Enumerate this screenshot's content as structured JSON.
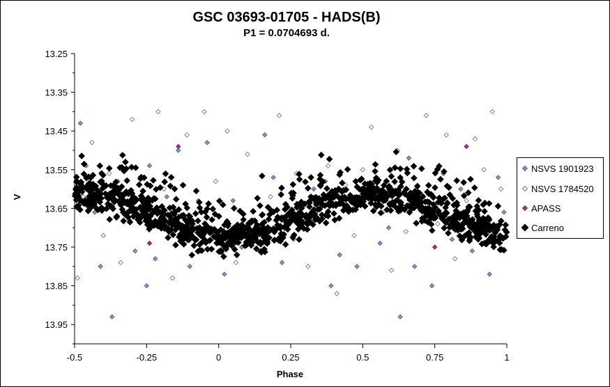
{
  "chart_data": {
    "type": "scatter",
    "title": "GSC 03693-01705  - HADS(B)",
    "subtitle": "P1 = 0.0704693 d.",
    "xlabel": "Phase",
    "ylabel": "V",
    "xlim": [
      -0.5,
      1.0
    ],
    "ylim": [
      13.25,
      14.0
    ],
    "y_inverted": true,
    "x_ticks": [
      "-0.5",
      "-0.25",
      "0",
      "0.25",
      "0.5",
      "0.75",
      "1"
    ],
    "x_tick_values": [
      -0.5,
      -0.25,
      0,
      0.25,
      0.5,
      0.75,
      1.0
    ],
    "y_ticks": [
      "13.25",
      "13.35",
      "13.45",
      "13.55",
      "13.65",
      "13.75",
      "13.85",
      "13.95"
    ],
    "y_tick_values": [
      13.25,
      13.35,
      13.45,
      13.55,
      13.65,
      13.75,
      13.85,
      13.95
    ],
    "grid": false,
    "legend_position": "right",
    "colors": {
      "nsvs1": "#8095c8",
      "nsvs2": "#ffffff",
      "apass": "#a0308a",
      "carreno": "#000000"
    },
    "series": [
      {
        "name": "NSVS 1901923",
        "marker": "small-diamond-filled",
        "points": [
          [
            -0.48,
            13.43
          ],
          [
            -0.46,
            13.54
          ],
          [
            -0.43,
            13.66
          ],
          [
            -0.41,
            13.8
          ],
          [
            -0.37,
            13.93
          ],
          [
            -0.35,
            13.58
          ],
          [
            -0.31,
            13.68
          ],
          [
            -0.29,
            13.76
          ],
          [
            -0.25,
            13.85
          ],
          [
            -0.24,
            13.54
          ],
          [
            -0.22,
            13.78
          ],
          [
            -0.2,
            13.69
          ],
          [
            -0.18,
            13.62
          ],
          [
            -0.14,
            13.5
          ],
          [
            -0.12,
            13.73
          ],
          [
            -0.1,
            13.8
          ],
          [
            -0.07,
            13.63
          ],
          [
            -0.04,
            13.48
          ],
          [
            -0.02,
            13.72
          ],
          [
            0.02,
            13.82
          ],
          [
            0.05,
            13.63
          ],
          [
            0.08,
            13.75
          ],
          [
            0.12,
            13.68
          ],
          [
            0.16,
            13.46
          ],
          [
            0.19,
            13.57
          ],
          [
            0.22,
            13.79
          ],
          [
            0.26,
            13.73
          ],
          [
            0.3,
            13.68
          ],
          [
            0.33,
            13.6
          ],
          [
            0.37,
            13.58
          ],
          [
            0.39,
            13.85
          ],
          [
            0.42,
            13.77
          ],
          [
            0.45,
            13.66
          ],
          [
            0.48,
            13.8
          ],
          [
            0.52,
            13.62
          ],
          [
            0.56,
            13.74
          ],
          [
            0.59,
            13.7
          ],
          [
            0.63,
            13.93
          ],
          [
            0.66,
            13.52
          ],
          [
            0.68,
            13.8
          ],
          [
            0.71,
            13.66
          ],
          [
            0.74,
            13.85
          ],
          [
            0.78,
            13.56
          ],
          [
            0.81,
            13.73
          ],
          [
            0.84,
            13.6
          ],
          [
            0.88,
            13.76
          ],
          [
            0.91,
            13.68
          ],
          [
            0.94,
            13.82
          ],
          [
            0.97,
            13.57
          ],
          [
            0.99,
            13.66
          ]
        ]
      },
      {
        "name": "NSVS 1784520",
        "marker": "small-diamond-open",
        "points": [
          [
            -0.49,
            13.83
          ],
          [
            -0.47,
            13.62
          ],
          [
            -0.44,
            13.48
          ],
          [
            -0.4,
            13.72
          ],
          [
            -0.38,
            13.56
          ],
          [
            -0.34,
            13.79
          ],
          [
            -0.3,
            13.42
          ],
          [
            -0.27,
            13.66
          ],
          [
            -0.24,
            13.74
          ],
          [
            -0.21,
            13.4
          ],
          [
            -0.19,
            13.6
          ],
          [
            -0.16,
            13.83
          ],
          [
            -0.11,
            13.46
          ],
          [
            -0.08,
            13.7
          ],
          [
            -0.05,
            13.4
          ],
          [
            -0.01,
            13.58
          ],
          [
            0.03,
            13.45
          ],
          [
            0.06,
            13.79
          ],
          [
            0.1,
            13.51
          ],
          [
            0.14,
            13.71
          ],
          [
            0.18,
            13.62
          ],
          [
            0.21,
            13.41
          ],
          [
            0.24,
            13.67
          ],
          [
            0.27,
            13.56
          ],
          [
            0.31,
            13.8
          ],
          [
            0.35,
            13.64
          ],
          [
            0.38,
            13.54
          ],
          [
            0.41,
            13.87
          ],
          [
            0.44,
            13.59
          ],
          [
            0.47,
            13.72
          ],
          [
            0.5,
            13.55
          ],
          [
            0.53,
            13.44
          ],
          [
            0.57,
            13.66
          ],
          [
            0.6,
            13.81
          ],
          [
            0.62,
            13.5
          ],
          [
            0.65,
            13.71
          ],
          [
            0.69,
            13.59
          ],
          [
            0.72,
            13.41
          ],
          [
            0.76,
            13.69
          ],
          [
            0.79,
            13.46
          ],
          [
            0.82,
            13.78
          ],
          [
            0.86,
            13.63
          ],
          [
            0.89,
            13.47
          ],
          [
            0.92,
            13.55
          ],
          [
            0.95,
            13.4
          ],
          [
            0.98,
            13.6
          ]
        ]
      },
      {
        "name": "APASS",
        "marker": "small-diamond-filled",
        "points": [
          [
            -0.14,
            13.49
          ],
          [
            -0.24,
            13.74
          ],
          [
            0.75,
            13.75
          ],
          [
            0.86,
            13.49
          ]
        ]
      },
      {
        "name": "Carreno",
        "marker": "large-diamond-filled",
        "count": 1200
      }
    ]
  }
}
